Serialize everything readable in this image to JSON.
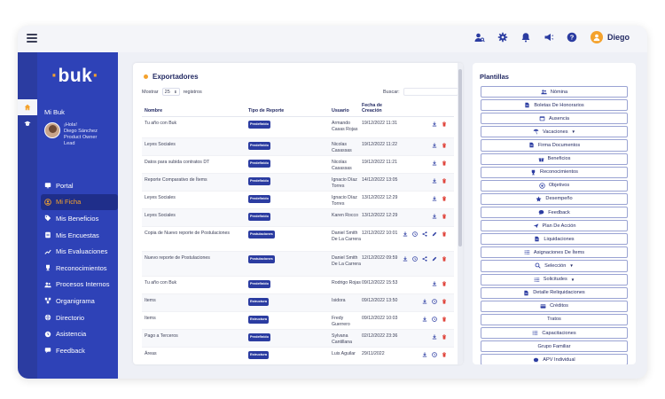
{
  "topbar": {
    "user_name": "Diego"
  },
  "sidebar": {
    "logo": "buk",
    "section_label": "Mi Buk",
    "profile": {
      "greeting": "¡Hola!",
      "name": "Diego Sánchez",
      "role": "Product Owner Lead"
    },
    "items": [
      {
        "label": "Portal",
        "icon": "portal-icon",
        "active": false
      },
      {
        "label": "Mi Ficha",
        "icon": "ficha-icon",
        "active": true
      },
      {
        "label": "Mis Beneficios",
        "icon": "tag-icon",
        "active": false
      },
      {
        "label": "Mis Encuestas",
        "icon": "survey-icon",
        "active": false
      },
      {
        "label": "Mis Evaluaciones",
        "icon": "chart-line-icon",
        "active": false
      },
      {
        "label": "Reconocimientos",
        "icon": "trophy-icon",
        "active": false
      },
      {
        "label": "Procesos Internos",
        "icon": "users-icon",
        "active": false
      },
      {
        "label": "Organigrama",
        "icon": "org-icon",
        "active": false
      },
      {
        "label": "Directorio",
        "icon": "globe-icon",
        "active": false
      },
      {
        "label": "Asistencia",
        "icon": "clock-icon",
        "active": false
      },
      {
        "label": "Feedback",
        "icon": "feedback-icon",
        "active": false
      }
    ]
  },
  "main": {
    "title": "Exportadores",
    "show_label": "Mostrar",
    "show_value": "25",
    "records_label": "registros",
    "search_label": "Buscar:",
    "columns": {
      "name": "Nombre",
      "type": "Tipo de Reporte",
      "user": "Usuario",
      "date": "Fecha de Creación"
    },
    "rows": [
      {
        "name": "Tu año con Buk",
        "type": "Predefinido",
        "user": "Armando Casas Rojas",
        "date": "19/12/2022 11:31",
        "actions": [
          "download",
          "delete"
        ]
      },
      {
        "name": "Leyes Sociales",
        "type": "Predefinido",
        "user": "Nicolas Casassas",
        "date": "19/12/2022 11:22",
        "actions": [
          "download",
          "delete"
        ]
      },
      {
        "name": "Datos para subida contratos DT",
        "type": "Predefinido",
        "user": "Nicolas Casassas",
        "date": "19/12/2022 11:21",
        "actions": [
          "download",
          "delete"
        ]
      },
      {
        "name": "Reporte Comparativo de Ítems",
        "type": "Predefinido",
        "user": "Ignacio Díaz Torres",
        "date": "14/12/2022 13:05",
        "actions": [
          "download",
          "delete"
        ]
      },
      {
        "name": "Leyes Sociales",
        "type": "Predefinido",
        "user": "Ignacio Díaz Torres",
        "date": "13/12/2022 12:29",
        "actions": [
          "download",
          "delete"
        ]
      },
      {
        "name": "Leyes Sociales",
        "type": "Predefinido",
        "user": "Karen Rocco",
        "date": "13/12/2022 12:29",
        "actions": [
          "download",
          "delete"
        ]
      },
      {
        "name": "Copia de Nuevo reporte de Postulaciones",
        "type": "Postulaciones",
        "user": "Daniel Smith De La Carrera",
        "date": "12/12/2022 10:01",
        "actions": [
          "download",
          "schedule",
          "share",
          "edit",
          "delete"
        ]
      },
      {
        "name": "Nuevo reporte de Postulaciones",
        "type": "Postulaciones",
        "user": "Daniel Smith De La Carrera",
        "date": "12/12/2022 09:59",
        "actions": [
          "download",
          "schedule",
          "share",
          "edit",
          "delete"
        ]
      },
      {
        "name": "Tu año con Buk",
        "type": "Predefinido",
        "user": "Rodrigo Rojas",
        "date": "09/12/2022 15:53",
        "actions": [
          "download",
          "delete"
        ]
      },
      {
        "name": "Items",
        "type": "Estructura",
        "user": "Isidora",
        "date": "09/12/2022 13:50",
        "actions": [
          "download",
          "schedule",
          "delete"
        ]
      },
      {
        "name": "Items",
        "type": "Estructura",
        "user": "Fredy Guerrero",
        "date": "09/12/2022 10:03",
        "actions": [
          "download",
          "schedule",
          "delete"
        ]
      },
      {
        "name": "Pago a Terceros",
        "type": "Predefinido",
        "user": "Sylvana Cantillana",
        "date": "02/12/2022 23:36",
        "actions": [
          "download",
          "delete"
        ]
      },
      {
        "name": "Áreas",
        "type": "Estructura",
        "user": "Luis Aguilar",
        "date": "29/11/2022",
        "actions": [
          "download",
          "schedule",
          "delete"
        ]
      }
    ]
  },
  "plantillas": {
    "title": "Plantillas",
    "items": [
      {
        "label": "Nómina",
        "icon": "users-icon",
        "dropdown": false
      },
      {
        "label": "Boletas De Honorarios",
        "icon": "file-icon",
        "dropdown": false
      },
      {
        "label": "Ausencia",
        "icon": "calendar-icon",
        "dropdown": false
      },
      {
        "label": "Vacaciones",
        "icon": "beach-icon",
        "dropdown": true
      },
      {
        "label": "Firma Documentos",
        "icon": "file-icon",
        "dropdown": false
      },
      {
        "label": "Beneficios",
        "icon": "gift-icon",
        "dropdown": false
      },
      {
        "label": "Reconocimientos",
        "icon": "trophy-icon",
        "dropdown": false
      },
      {
        "label": "Objetivos",
        "icon": "target-icon",
        "dropdown": false
      },
      {
        "label": "Desempeño",
        "icon": "star-icon",
        "dropdown": false
      },
      {
        "label": "Feedback",
        "icon": "chat-icon",
        "dropdown": false
      },
      {
        "label": "Plan De Acción",
        "icon": "route-icon",
        "dropdown": false
      },
      {
        "label": "Liquidaciones",
        "icon": "file-icon",
        "dropdown": false
      },
      {
        "label": "Asignaciones De Ítems",
        "icon": "list-icon",
        "dropdown": false
      },
      {
        "label": "Selección",
        "icon": "search-icon",
        "dropdown": true
      },
      {
        "label": "Solicitudes",
        "icon": "list-icon",
        "dropdown": true
      },
      {
        "label": "Detalle Reliquidaciones",
        "icon": "file-icon",
        "dropdown": false
      },
      {
        "label": "Créditos",
        "icon": "card-icon",
        "dropdown": false
      },
      {
        "label": "Tratos",
        "icon": "",
        "dropdown": false
      },
      {
        "label": "Capacitaciones",
        "icon": "list-icon",
        "dropdown": false
      },
      {
        "label": "Grupo Familiar",
        "icon": "",
        "dropdown": false
      },
      {
        "label": "APV Individual",
        "icon": "pig-icon",
        "dropdown": false
      }
    ]
  },
  "colors": {
    "brand": "#2e42b7",
    "accent": "#f4a22d",
    "delete": "#e0463d",
    "text_dark": "#232a63"
  }
}
